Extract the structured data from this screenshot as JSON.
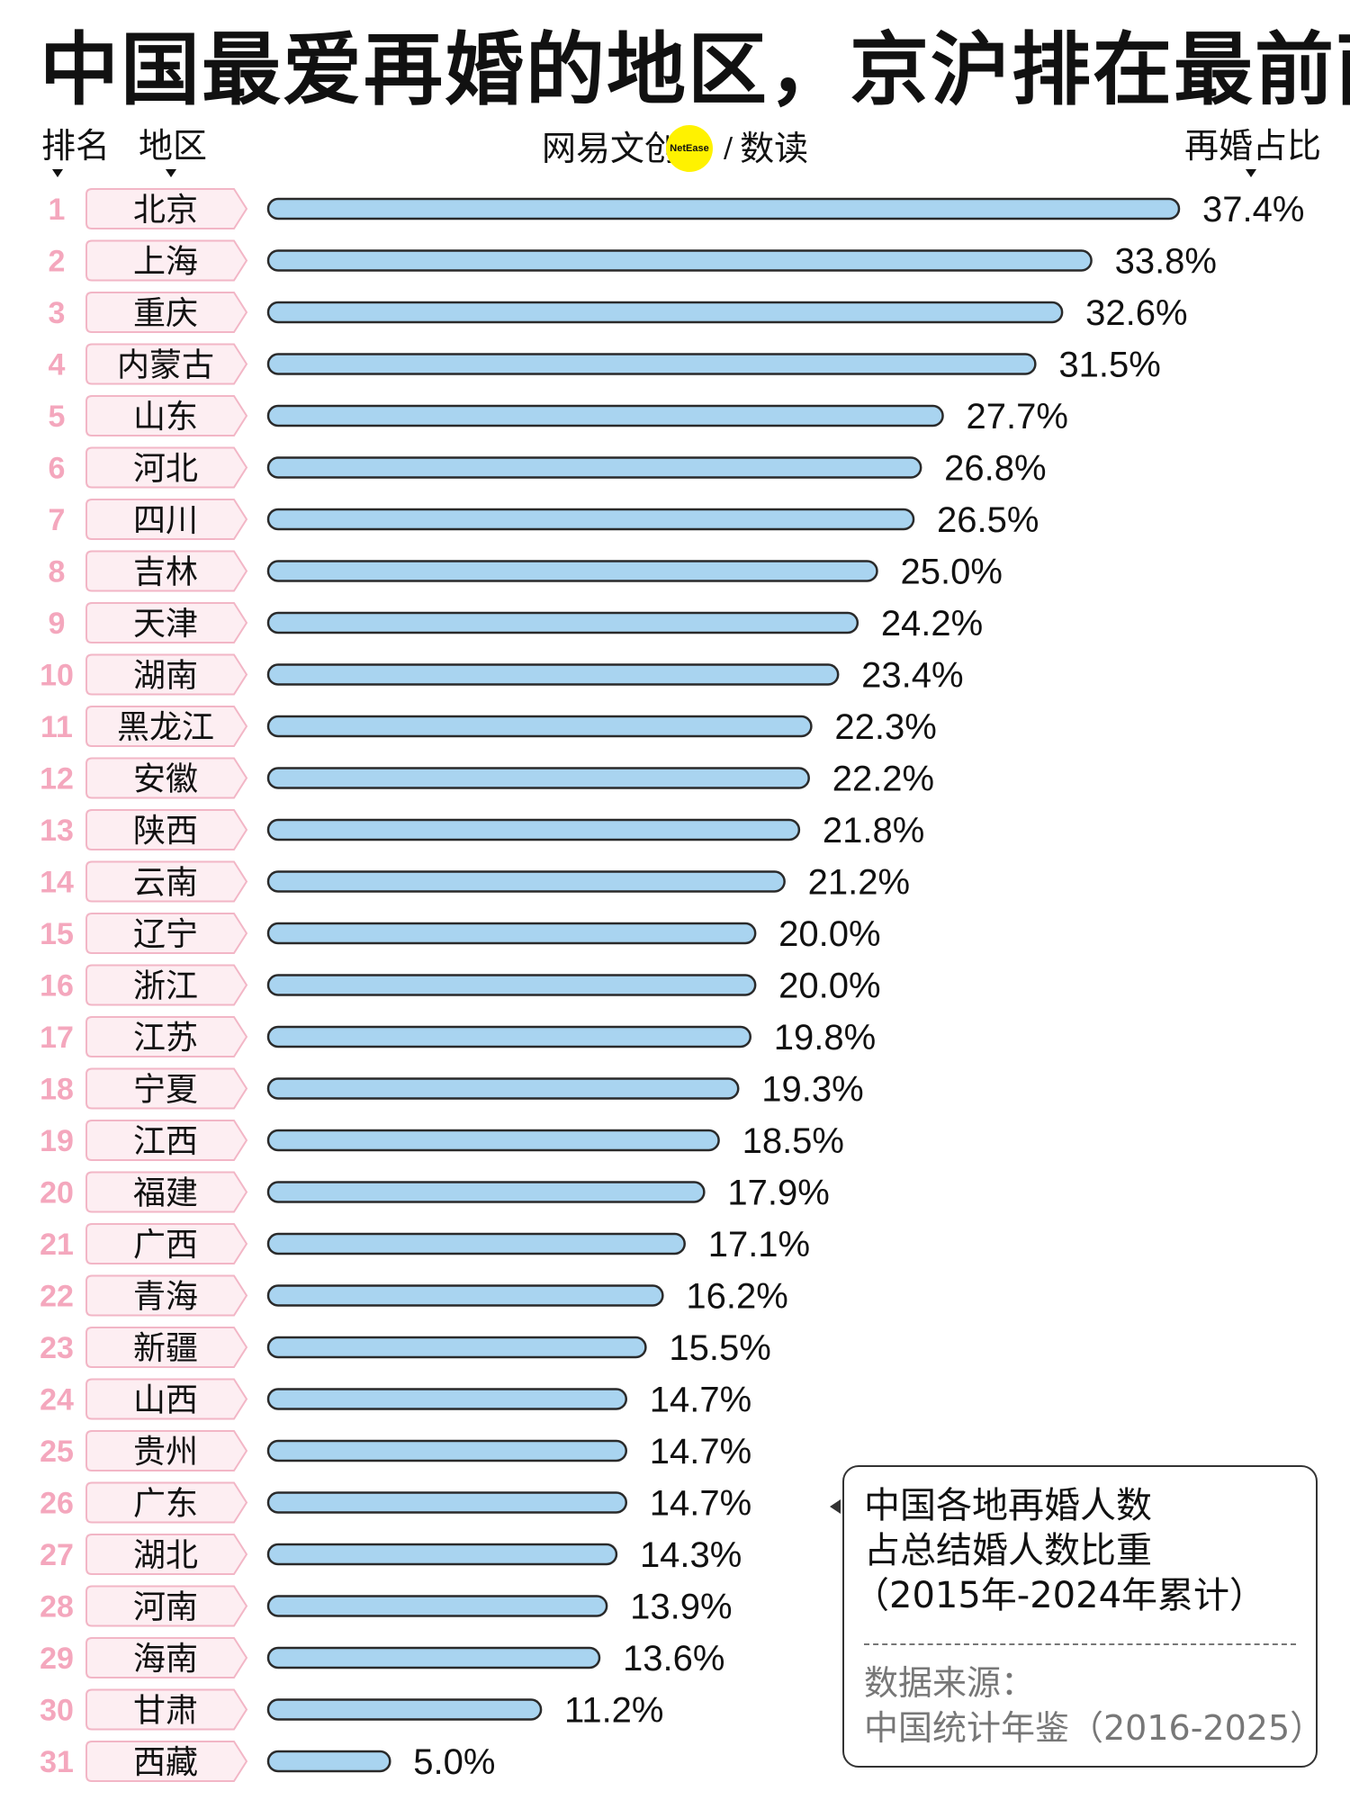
{
  "title": "中国最爱再婚的地区，京沪排在最前面",
  "header": {
    "rank_label": "排名",
    "region_label": "地区",
    "value_label": "再婚占比"
  },
  "brand": {
    "name": "网易文创",
    "badge": "NetEase",
    "slash": "/",
    "section": "数读"
  },
  "note": {
    "line1": "中国各地再婚人数",
    "line2": "占总结婚人数比重",
    "line3": "（2015年-2024年累计）",
    "source_label": "数据来源：",
    "source": "中国统计年鉴（2016-2025）"
  },
  "colors": {
    "bar_fill": "#a9d4f0",
    "bar_stroke": "#2a2a2a",
    "rank": "#f4a7bd",
    "tag_fill": "#fdeef2",
    "tag_stroke": "#f2b6c6",
    "logo_dot": "#fff200"
  },
  "chart_data": {
    "type": "bar",
    "orientation": "horizontal",
    "title": "中国最爱再婚的地区，京沪排在最前面",
    "ylabel": "地区",
    "xlabel": "再婚占比",
    "unit": "%",
    "ranks": [
      1,
      2,
      3,
      4,
      5,
      6,
      7,
      8,
      9,
      10,
      11,
      12,
      13,
      14,
      15,
      16,
      17,
      18,
      19,
      20,
      21,
      22,
      23,
      24,
      25,
      26,
      27,
      28,
      29,
      30,
      31
    ],
    "categories": [
      "北京",
      "上海",
      "重庆",
      "内蒙古",
      "山东",
      "河北",
      "四川",
      "吉林",
      "天津",
      "湖南",
      "黑龙江",
      "安徽",
      "陕西",
      "云南",
      "辽宁",
      "浙江",
      "江苏",
      "宁夏",
      "江西",
      "福建",
      "广西",
      "青海",
      "新疆",
      "山西",
      "贵州",
      "广东",
      "湖北",
      "河南",
      "海南",
      "甘肃",
      "西藏"
    ],
    "values": [
      37.4,
      33.8,
      32.6,
      31.5,
      27.7,
      26.8,
      26.5,
      25.0,
      24.2,
      23.4,
      22.3,
      22.2,
      21.8,
      21.2,
      20.0,
      20.0,
      19.8,
      19.3,
      18.5,
      17.9,
      17.1,
      16.2,
      15.5,
      14.7,
      14.7,
      14.7,
      14.3,
      13.9,
      13.6,
      11.2,
      5.0
    ],
    "labels": [
      "37.4%",
      "33.8%",
      "32.6%",
      "31.5%",
      "27.7%",
      "26.8%",
      "26.5%",
      "25.0%",
      "24.2%",
      "23.4%",
      "22.3%",
      "22.2%",
      "21.8%",
      "21.2%",
      "20.0%",
      "20.0%",
      "19.8%",
      "19.3%",
      "18.5%",
      "17.9%",
      "17.1%",
      "16.2%",
      "15.5%",
      "14.7%",
      "14.7%",
      "14.7%",
      "14.3%",
      "13.9%",
      "13.6%",
      "11.2%",
      "5.0%"
    ],
    "xlim": [
      0,
      37.4
    ],
    "grid": false,
    "legend": "none"
  }
}
